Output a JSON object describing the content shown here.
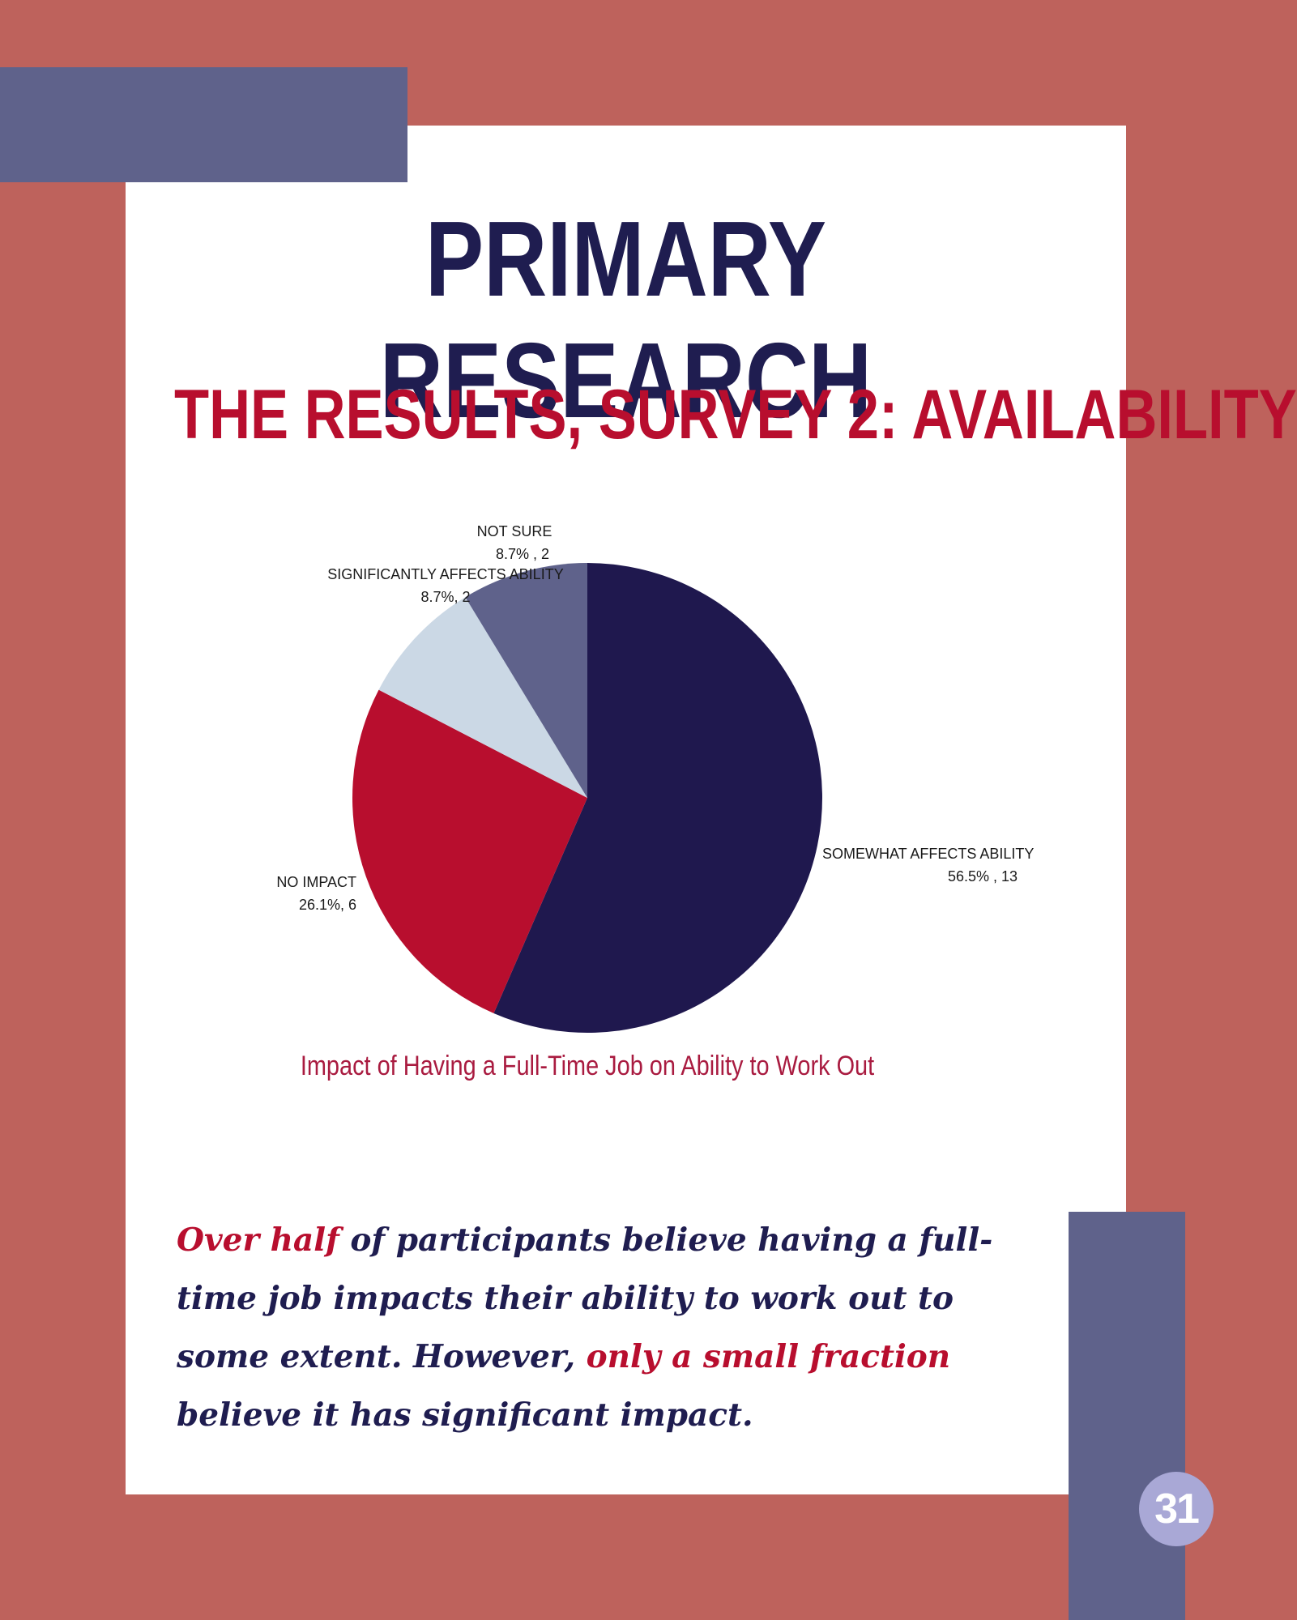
{
  "page": {
    "title": "PRIMARY RESEARCH",
    "subtitle": "THE RESULTS, SURVEY 2: AVAILABILITY",
    "page_number": "31",
    "body": {
      "highlight_1": "Over half",
      "text_1": " of participants believe having a full-time job impacts their ability to work out to some extent. However, ",
      "highlight_2": "only a small fraction",
      "text_2": " believe it has significant impact."
    },
    "colors": {
      "background": "#BE625C",
      "panel": "#FFFFFF",
      "accent_block": "#5F628B",
      "title": "#1F1D50",
      "subtitle": "#B80E2E",
      "page_badge": "#A9A8D6"
    }
  },
  "chart_data": {
    "type": "pie",
    "title": "Impact of Having a Full-Time Job on Ability to Work Out",
    "slices": [
      {
        "label": "SOMEWHAT AFFECTS ABILITY",
        "value": 13,
        "percent": 56.5,
        "value_label": "56.5% , 13",
        "color": "#1F184E"
      },
      {
        "label": "NO IMPACT",
        "value": 6,
        "percent": 26.1,
        "value_label": "26.1%, 6",
        "color": "#B80E2E"
      },
      {
        "label": "SIGNIFICANTLY AFFECTS ABILITY",
        "value": 2,
        "percent": 8.7,
        "value_label": "8.7%, 2",
        "color": "#CBD8E5"
      },
      {
        "label": "NOT SURE",
        "value": 2,
        "percent": 8.7,
        "value_label": "8.7% , 2",
        "color": "#5F628B"
      }
    ]
  }
}
